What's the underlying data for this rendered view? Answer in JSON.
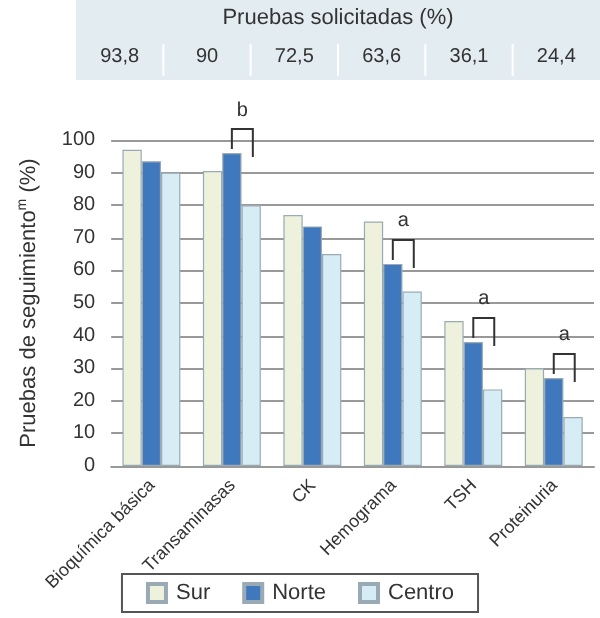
{
  "chart_data": {
    "type": "bar",
    "title": "Pruebas solicitadas (%)",
    "ylabel": "Pruebas de seguimiento$^{m}$ (%)",
    "categories": [
      "Bioquímica básica",
      "Transaminasas",
      "CK",
      "Hemograma",
      "TSH",
      "Proteinuria"
    ],
    "series": [
      {
        "name": "Sur",
        "color": "#eef2dc",
        "values": [
          97,
          90.5,
          77,
          75,
          44.5,
          30
        ]
      },
      {
        "name": "Norte",
        "color": "#3f78bd",
        "values": [
          93.5,
          96,
          73.5,
          62,
          38,
          27
        ]
      },
      {
        "name": "Centro",
        "color": "#d6edf6",
        "values": [
          90,
          80,
          65,
          53.5,
          23.5,
          15
        ]
      }
    ],
    "ylim": [
      0,
      100
    ],
    "yticks": [
      0,
      10,
      20,
      30,
      40,
      50,
      60,
      70,
      80,
      90,
      100
    ],
    "grid": "y",
    "legend": "bottom",
    "annotations": [
      "93,8",
      "90",
      "72,5",
      "63,6",
      "36,1",
      "24,4",
      {
        "text": "b",
        "x": "Transaminasas",
        "y": 96
      },
      {
        "text": "a",
        "x": "Hemograma",
        "y": 62
      },
      {
        "text": "a",
        "x": "TSH",
        "y": 38
      },
      {
        "text": "a",
        "x": "Proteinuria",
        "y": 27
      }
    ]
  }
}
